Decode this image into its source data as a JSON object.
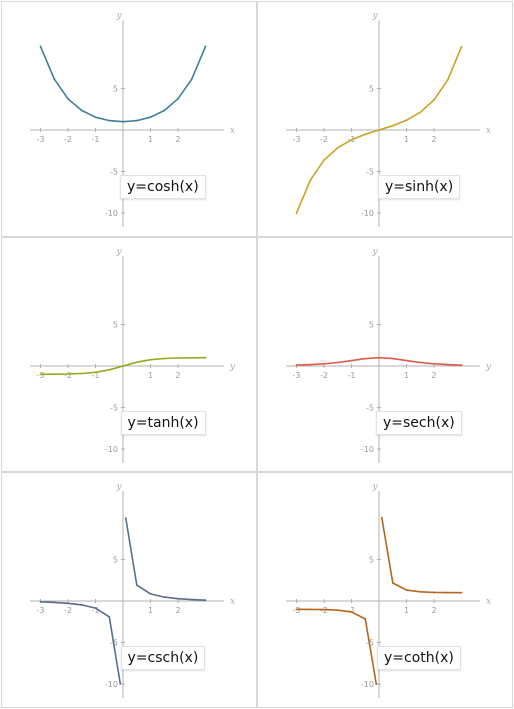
{
  "chart_data": [
    {
      "type": "line",
      "function": "cosh",
      "label": "y=cosh(x)",
      "color": "#3f7f99",
      "xlabel": "x",
      "ylabel": "y",
      "xticks": [
        "-3",
        "-2",
        "-1",
        "1",
        "2"
      ],
      "yticks": [
        "5",
        "-5",
        "-10"
      ],
      "xlim": [
        -3.3,
        3.3
      ],
      "ylim": [
        -11,
        11
      ],
      "x": [
        -3,
        -2.5,
        -2,
        -1.5,
        -1,
        -0.5,
        0,
        0.5,
        1,
        1.5,
        2,
        2.5,
        3
      ],
      "y": [
        10.07,
        6.13,
        3.76,
        2.35,
        1.54,
        1.13,
        1,
        1.13,
        1.54,
        2.35,
        3.76,
        6.13,
        10.07
      ]
    },
    {
      "type": "line",
      "function": "sinh",
      "label": "y=sinh(x)",
      "color": "#c9a227",
      "xlabel": "x",
      "ylabel": "y",
      "xticks": [
        "-3",
        "-2",
        "-1",
        "1",
        "2"
      ],
      "yticks": [
        "5",
        "-5",
        "-10"
      ],
      "xlim": [
        -3.3,
        3.3
      ],
      "ylim": [
        -11,
        11
      ],
      "x": [
        -3,
        -2.5,
        -2,
        -1.5,
        -1,
        -0.5,
        0,
        0.5,
        1,
        1.5,
        2,
        2.5,
        3
      ],
      "y": [
        -10.02,
        -6.05,
        -3.63,
        -2.13,
        -1.18,
        -0.52,
        0,
        0.52,
        1.18,
        2.13,
        3.63,
        6.05,
        10.02
      ]
    },
    {
      "type": "line",
      "function": "tanh",
      "label": "y=tanh(x)",
      "color": "#8fae1b",
      "xlabel": "y",
      "ylabel": "y",
      "xticks": [
        "-3",
        "-2",
        "-1",
        "1",
        "2"
      ],
      "yticks": [
        "5",
        "-5",
        "-10"
      ],
      "xlim": [
        -3.3,
        3.3
      ],
      "ylim": [
        -11,
        11
      ],
      "x": [
        -3,
        -2.5,
        -2,
        -1.5,
        -1,
        -0.5,
        0,
        0.5,
        1,
        1.5,
        2,
        2.5,
        3
      ],
      "y": [
        -0.995,
        -0.987,
        -0.964,
        -0.905,
        -0.762,
        -0.462,
        0,
        0.462,
        0.762,
        0.905,
        0.964,
        0.987,
        0.995
      ]
    },
    {
      "type": "line",
      "function": "sech",
      "label": "y=sech(x)",
      "color": "#e05a4a",
      "xlabel": "y",
      "ylabel": "y",
      "xticks": [
        "-3",
        "-2",
        "-1",
        "1",
        "2"
      ],
      "yticks": [
        "5",
        "-5",
        "-10"
      ],
      "xlim": [
        -3.3,
        3.3
      ],
      "ylim": [
        -11,
        11
      ],
      "x": [
        -3,
        -2.5,
        -2,
        -1.5,
        -1,
        -0.5,
        0,
        0.5,
        1,
        1.5,
        2,
        2.5,
        3
      ],
      "y": [
        0.099,
        0.163,
        0.266,
        0.425,
        0.648,
        0.887,
        1,
        0.887,
        0.648,
        0.425,
        0.266,
        0.163,
        0.099
      ]
    },
    {
      "type": "line",
      "function": "csch",
      "label": "y=csch(x)",
      "color": "#5a6e8c",
      "xlabel": "x",
      "ylabel": "y",
      "xticks": [
        "-3",
        "-2",
        "-1",
        "1",
        "2"
      ],
      "yticks": [
        "5",
        "-5",
        "-10"
      ],
      "xlim": [
        -3.3,
        3.3
      ],
      "ylim": [
        -11,
        11
      ],
      "x": [
        -3,
        -2.5,
        -2,
        -1.5,
        -1,
        -0.5,
        -0.1,
        0.1,
        0.5,
        1,
        1.5,
        2,
        2.5,
        3
      ],
      "y": [
        -0.1,
        -0.165,
        -0.276,
        -0.47,
        -0.851,
        -1.919,
        -9.98,
        9.98,
        1.919,
        0.851,
        0.47,
        0.276,
        0.165,
        0.1
      ]
    },
    {
      "type": "line",
      "function": "coth",
      "label": "y=coth(x)",
      "color": "#b5651d",
      "xlabel": "x",
      "ylabel": "y",
      "xticks": [
        "-3",
        "-2",
        "-1",
        "1",
        "2"
      ],
      "yticks": [
        "5",
        "-5",
        "-10"
      ],
      "xlim": [
        -3.3,
        3.3
      ],
      "ylim": [
        -11,
        11
      ],
      "x": [
        -3,
        -2.5,
        -2,
        -1.5,
        -1,
        -0.5,
        -0.1,
        0.1,
        0.5,
        1,
        1.5,
        2,
        2.5,
        3
      ],
      "y": [
        -1.005,
        -1.013,
        -1.037,
        -1.105,
        -1.313,
        -2.164,
        -10.03,
        10.03,
        2.164,
        1.313,
        1.105,
        1.037,
        1.013,
        1.005
      ]
    }
  ]
}
